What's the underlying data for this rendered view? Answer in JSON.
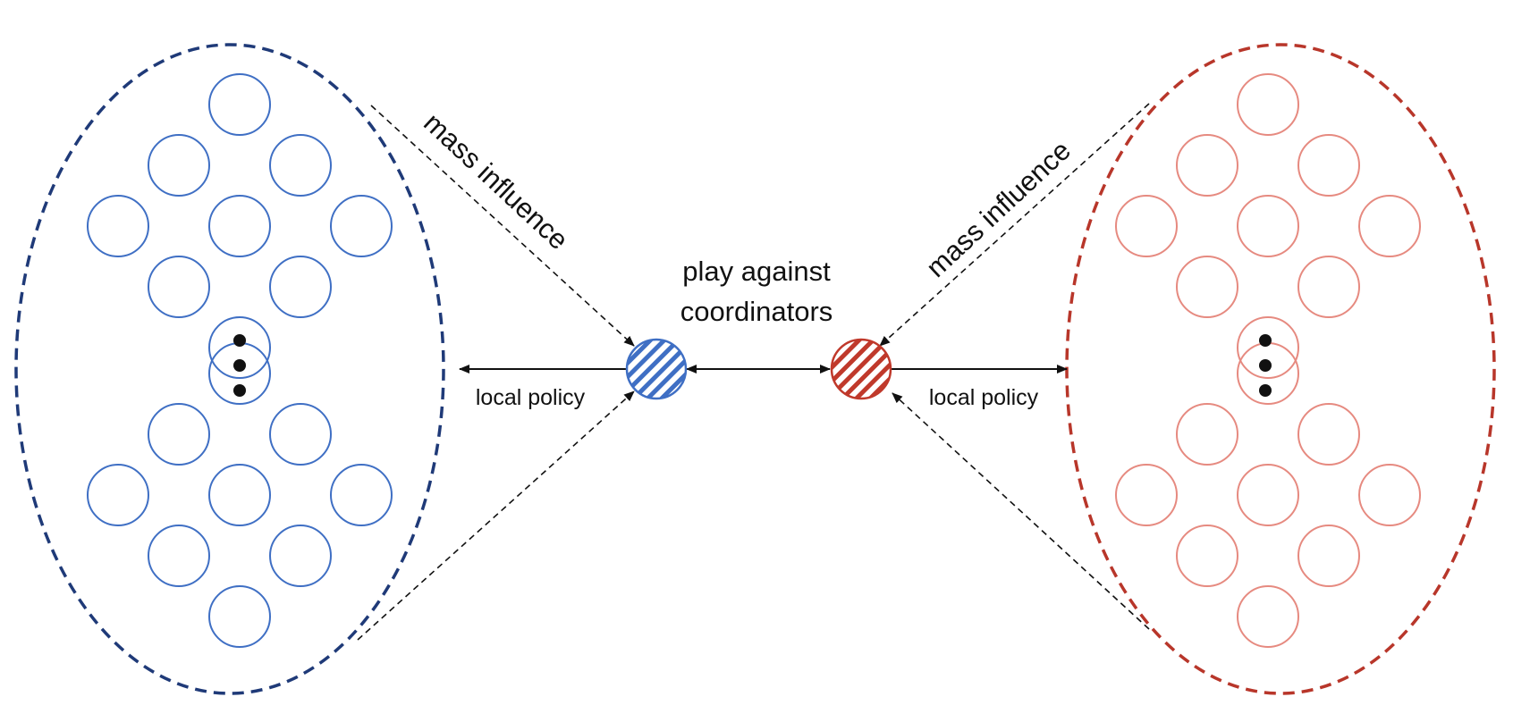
{
  "labels": {
    "center": [
      "play against",
      "coordinators"
    ],
    "left_mass": "mass influence",
    "left_local": "local policy",
    "right_mass": "mass influence",
    "right_local": "local policy"
  },
  "colors": {
    "left_population": "#1f3a78",
    "left_agent": "#3f6fc4",
    "right_population": "#b8362a",
    "right_agent": "#e68a80",
    "coordinator_left": "#3f6fc4",
    "coordinator_right": "#c0392b",
    "ink": "#111111"
  },
  "groups": {
    "left": {
      "name": "left-population",
      "agents_per_block": 9,
      "blocks": 2,
      "ellipsis": "vertical-dots"
    },
    "right": {
      "name": "right-population",
      "agents_per_block": 9,
      "blocks": 2,
      "ellipsis": "vertical-dots"
    }
  }
}
